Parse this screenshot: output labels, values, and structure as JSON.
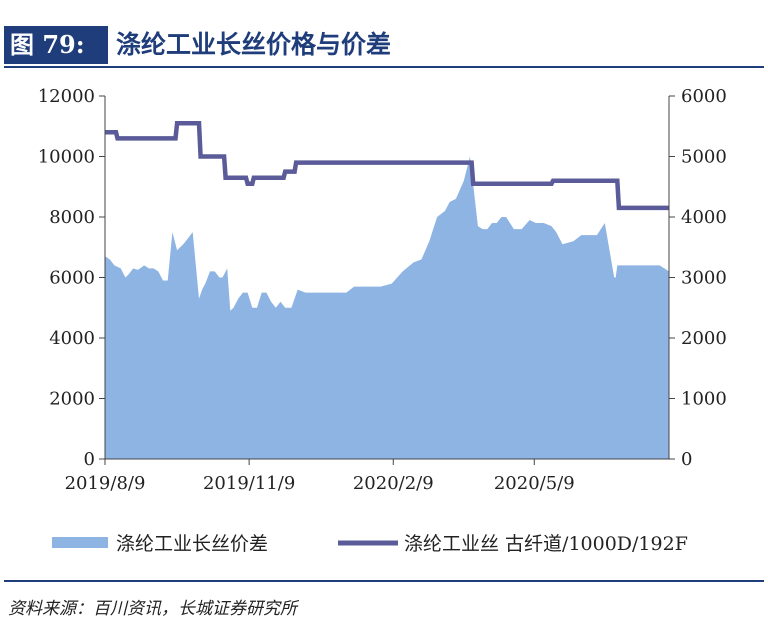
{
  "figure": {
    "number": "图 79:",
    "title": "涤纶工业长丝价格与价差",
    "source": "资料来源：百川资讯，长城证券研究所"
  },
  "colors": {
    "area": "#8eb4e3",
    "line": "#5b5b99",
    "header": "#1f3d7a"
  },
  "chart_data": {
    "type": "area",
    "x_ticks": [
      "2019/8/9",
      "2019/11/9",
      "2020/2/9",
      "2020/5/9"
    ],
    "left_axis": {
      "ylim": [
        0,
        12000
      ],
      "ticks": [
        "0",
        "2000",
        "4000",
        "6000",
        "8000",
        "10000",
        "12000"
      ]
    },
    "right_axis": {
      "ylim": [
        0,
        6000
      ],
      "ticks": [
        "0",
        "1000",
        "2000",
        "3000",
        "4000",
        "5000",
        "6000"
      ]
    },
    "grid": false,
    "legend_position": "bottom",
    "series": [
      {
        "name": "涤纶工业长丝价差",
        "type": "area",
        "axis": "left",
        "x": [
          "2019-08-09",
          "2019-08-12",
          "2019-08-15",
          "2019-08-19",
          "2019-08-22",
          "2019-08-24",
          "2019-08-27",
          "2019-08-30",
          "2019-09-03",
          "2019-09-06",
          "2019-09-09",
          "2019-09-12",
          "2019-09-15",
          "2019-09-18",
          "2019-09-21",
          "2019-09-24",
          "2019-09-26",
          "2019-09-28",
          "2019-10-01",
          "2019-10-04",
          "2019-10-08",
          "2019-10-10",
          "2019-10-12",
          "2019-10-15",
          "2019-10-18",
          "2019-10-21",
          "2019-10-23",
          "2019-10-26",
          "2019-10-28",
          "2019-10-30",
          "2019-11-02",
          "2019-11-05",
          "2019-11-08",
          "2019-11-11",
          "2019-11-14",
          "2019-11-17",
          "2019-11-20",
          "2019-11-23",
          "2019-11-26",
          "2019-11-29",
          "2019-12-02",
          "2019-12-06",
          "2019-12-10",
          "2019-12-15",
          "2019-12-20",
          "2019-12-25",
          "2020-01-01",
          "2020-01-05",
          "2020-01-10",
          "2020-01-15",
          "2020-01-20",
          "2020-01-25",
          "2020-02-01",
          "2020-02-08",
          "2020-02-15",
          "2020-02-22",
          "2020-02-27",
          "2020-03-03",
          "2020-03-08",
          "2020-03-13",
          "2020-03-16",
          "2020-03-20",
          "2020-03-25",
          "2020-03-29",
          "2020-04-03",
          "2020-04-06",
          "2020-04-09",
          "2020-04-12",
          "2020-04-15",
          "2020-04-18",
          "2020-04-21",
          "2020-04-26",
          "2020-05-01",
          "2020-05-06",
          "2020-05-10",
          "2020-05-15",
          "2020-05-20",
          "2020-05-23",
          "2020-05-27",
          "2020-06-03",
          "2020-06-08",
          "2020-06-13",
          "2020-06-18",
          "2020-06-23",
          "2020-06-29",
          "2020-06-30",
          "2020-07-01",
          "2020-07-07",
          "2020-07-14",
          "2020-07-21",
          "2020-07-28",
          "2020-08-03"
        ],
        "values": [
          6700,
          6600,
          6400,
          6300,
          6000,
          6100,
          6300,
          6250,
          6400,
          6300,
          6300,
          6200,
          5900,
          5900,
          7500,
          6900,
          7000,
          7100,
          7300,
          7500,
          5300,
          5600,
          5800,
          6200,
          6200,
          6000,
          6000,
          6300,
          4900,
          5000,
          5300,
          5500,
          5500,
          5000,
          5000,
          5500,
          5500,
          5200,
          5000,
          5200,
          5000,
          5000,
          5600,
          5500,
          5500,
          5500,
          5500,
          5500,
          5500,
          5700,
          5700,
          5700,
          5700,
          5800,
          6200,
          6500,
          6600,
          7200,
          8000,
          8200,
          8500,
          8600,
          9200,
          10000,
          7700,
          7600,
          7600,
          7800,
          7800,
          8000,
          8000,
          7600,
          7600,
          7900,
          7800,
          7800,
          7700,
          7500,
          7100,
          7200,
          7400,
          7400,
          7400,
          7800,
          6000,
          6000,
          6400,
          6400,
          6400,
          6400,
          6400,
          6200
        ]
      },
      {
        "name": "涤纶工业丝 古纤道/1000D/192F",
        "type": "line",
        "axis": "right",
        "x": [
          "2019-08-09",
          "2019-08-16",
          "2019-08-17",
          "2019-09-23",
          "2019-09-24",
          "2019-10-08",
          "2019-10-09",
          "2019-10-24",
          "2019-10-25",
          "2019-11-07",
          "2019-11-08",
          "2019-11-11",
          "2019-11-12",
          "2019-11-20",
          "2019-11-21",
          "2019-12-01",
          "2019-12-02",
          "2019-12-08",
          "2019-12-09",
          "2020-03-30",
          "2020-03-31",
          "2020-05-20",
          "2020-05-21",
          "2020-07-01",
          "2020-07-02",
          "2020-08-03"
        ],
        "values": [
          5400,
          5400,
          5300,
          5300,
          5550,
          5550,
          5000,
          5000,
          4650,
          4650,
          4550,
          4550,
          4650,
          4650,
          4650,
          4650,
          4750,
          4750,
          4900,
          4900,
          4550,
          4550,
          4600,
          4600,
          4150,
          4150
        ]
      }
    ]
  }
}
